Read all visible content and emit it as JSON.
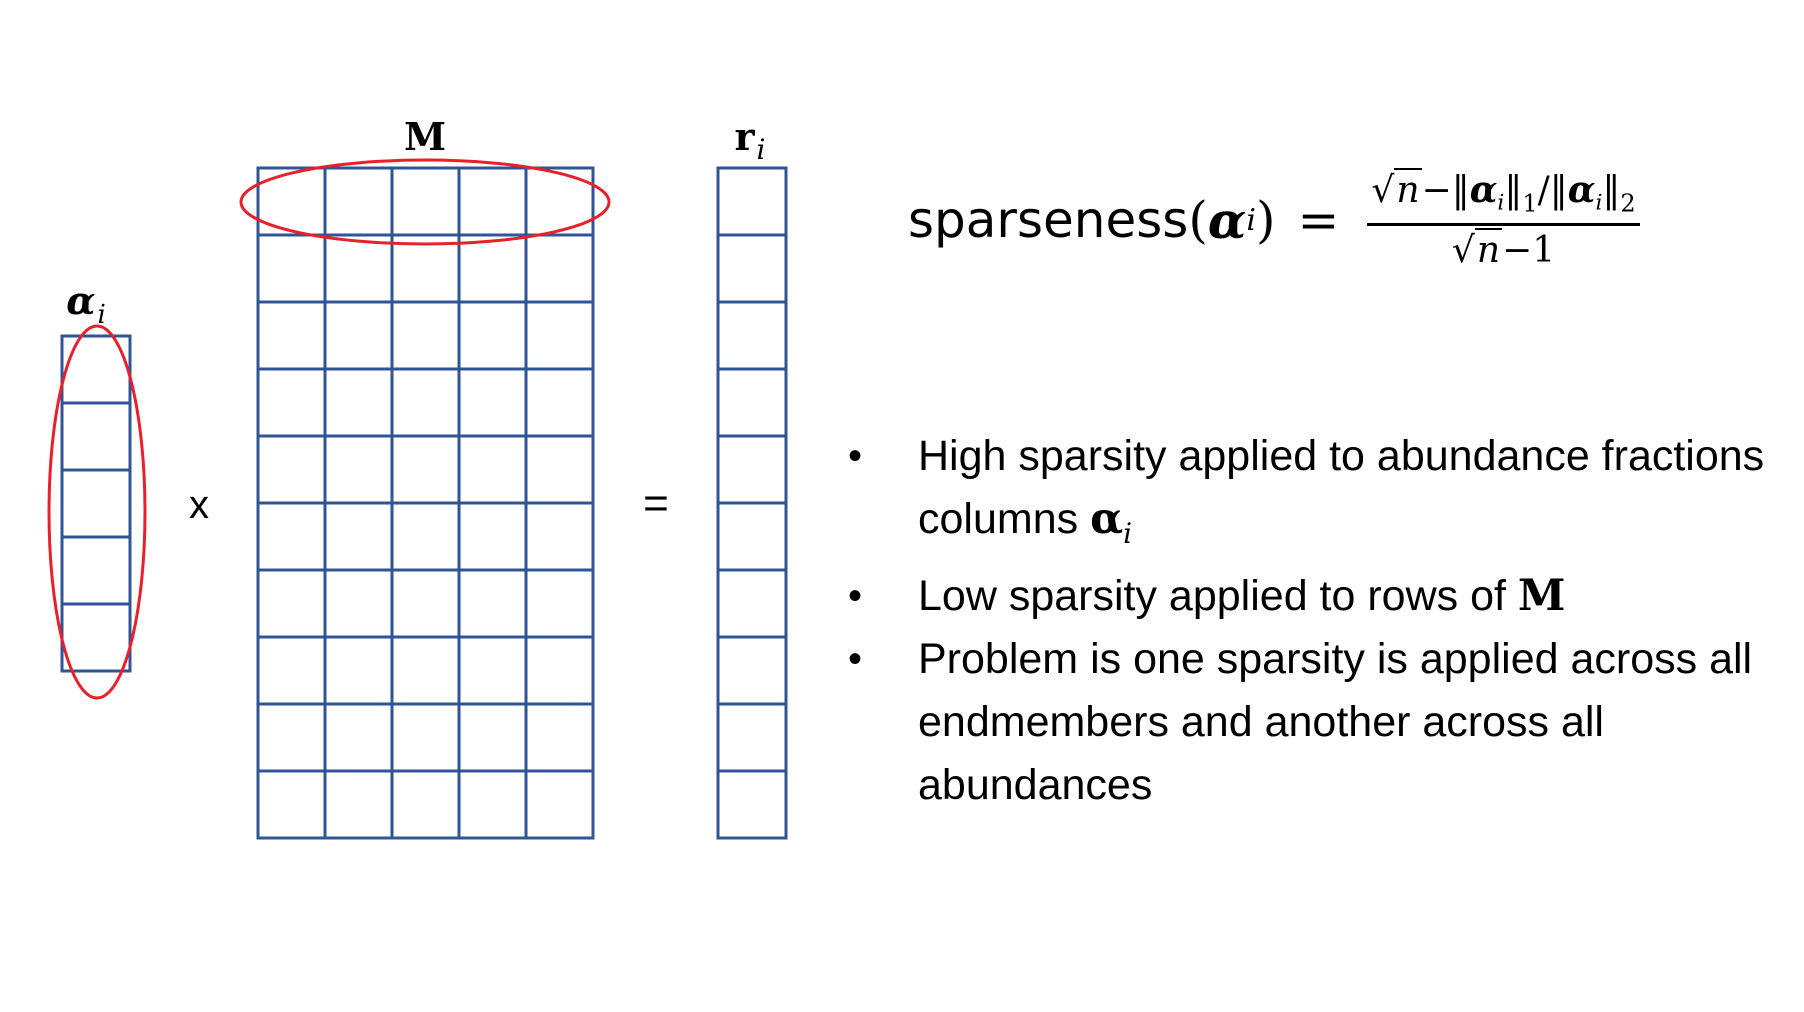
{
  "diagram": {
    "labels": {
      "alpha_label": "α",
      "alpha_sub": "i",
      "m_label": "M",
      "r_label": "r",
      "r_sub": "i",
      "times": "x",
      "equals": "="
    },
    "alpha_vector": {
      "rows": 5,
      "cols": 1
    },
    "m_matrix": {
      "rows": 10,
      "cols": 5
    },
    "r_vector": {
      "rows": 10,
      "cols": 1
    },
    "colors": {
      "grid": "#2f5597",
      "highlight": "#e8202a",
      "text": "#000000"
    }
  },
  "formula": {
    "word": "sparseness",
    "open": "(",
    "alpha": "α",
    "sub": "i",
    "close": ")",
    "equals": "=",
    "num_n": "n",
    "num_minus": "−‖",
    "num_alpha1": "α",
    "num_sub1": "i",
    "num_norm1": "‖",
    "num_one": "1",
    "num_slash": "/‖",
    "num_alpha2": "α",
    "num_sub2": "i",
    "num_norm2": "‖",
    "num_two": "2",
    "den_n": "n",
    "den_rest": "−1"
  },
  "bullets": {
    "b1_text": "High sparsity applied to abundance fractions columns ",
    "b1_sym": "α",
    "b1_sub": "i",
    "b2_text": "Low sparsity applied to rows of ",
    "b2_sym": "M",
    "b3_text": "Problem is one sparsity is applied across all endmembers and another across all abundances",
    "bullet_char": "•"
  }
}
